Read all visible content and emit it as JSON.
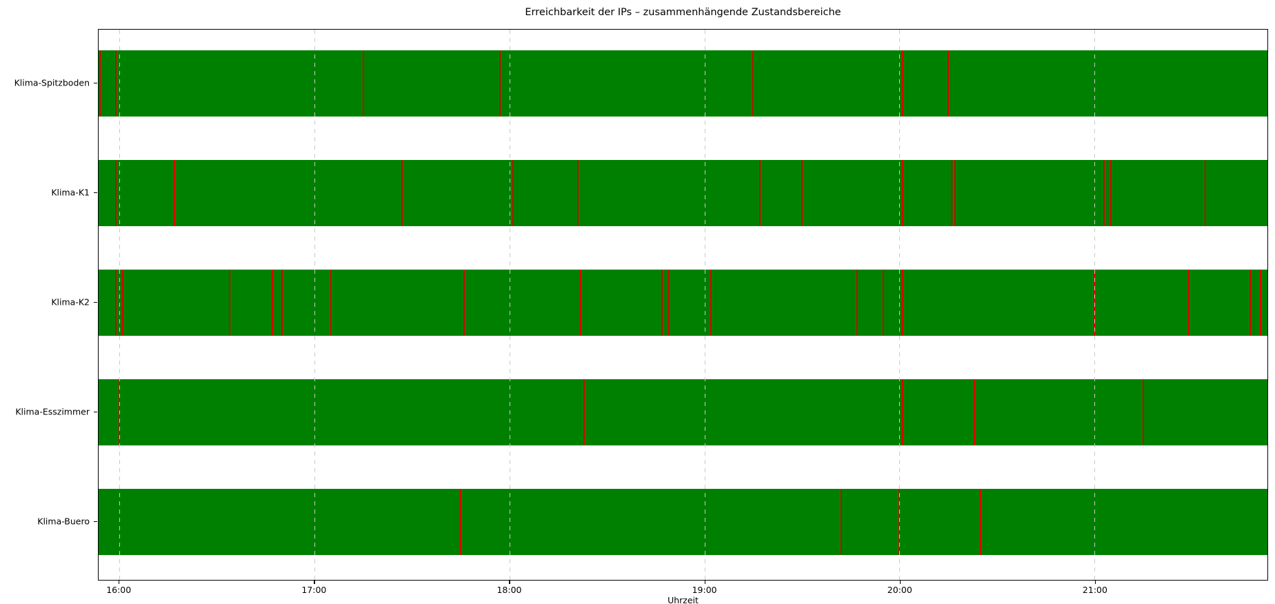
{
  "title": "Erreichbarkeit der IPs – zusammenhängende Zustandsbereiche",
  "colors": {
    "up_bar": "#008000",
    "outage_mark": "#dd0000",
    "grid": "#c9c9c9",
    "spine": "#000000",
    "background": "#ffffff"
  },
  "chart_data": {
    "type": "status-timeline",
    "title": "Erreichbarkeit der IPs – zusammenhängende Zustandsbereiche",
    "xlabel": "Uhrzeit",
    "ylabel": "",
    "x_axis": {
      "start_min": 953.6,
      "end_min": 1313.2,
      "start_label": "15:53.6",
      "end_label": "21:53.2",
      "ticks": [
        "16:00",
        "17:00",
        "18:00",
        "19:00",
        "20:00",
        "21:00"
      ],
      "grid": "dashed vertical gridlines drawn over bars"
    },
    "legend": "none",
    "rows": [
      {
        "label": "Klima-Spitzboden",
        "bar": {
          "start": "15:54",
          "end": "21:53",
          "state": "up"
        },
        "outage_marks": [
          "15:54",
          "15:59",
          "17:15",
          "17:57",
          "19:15",
          "20:01",
          "20:15"
        ]
      },
      {
        "label": "Klima-K1",
        "bar": {
          "start": "15:54",
          "end": "21:53",
          "state": "up"
        },
        "outage_marks": [
          "15:59",
          "16:17",
          "17:27",
          "18:01",
          "18:21",
          "19:17",
          "19:30",
          "20:01",
          "20:16",
          "20:17",
          "21:03",
          "21:05",
          "21:34"
        ]
      },
      {
        "label": "Klima-K2",
        "bar": {
          "start": "15:54",
          "end": "21:53",
          "state": "up"
        },
        "outage_marks": [
          "15:59",
          "16:01",
          "16:34",
          "16:47",
          "16:50",
          "17:05",
          "17:46",
          "18:22",
          "18:47",
          "18:49",
          "19:02",
          "19:47",
          "19:55",
          "20:01",
          "21:00",
          "21:29",
          "21:48",
          "21:51"
        ]
      },
      {
        "label": "Klima-Esszimmer",
        "bar": {
          "start": "15:54",
          "end": "21:53",
          "state": "up"
        },
        "outage_marks": [
          "16:00",
          "18:23",
          "20:01",
          "20:23",
          "21:15"
        ]
      },
      {
        "label": "Klima-Buero",
        "bar": {
          "start": "15:54",
          "end": "21:53",
          "state": "up"
        },
        "outage_marks": [
          "17:45",
          "19:42",
          "20:00",
          "20:25"
        ]
      }
    ]
  }
}
